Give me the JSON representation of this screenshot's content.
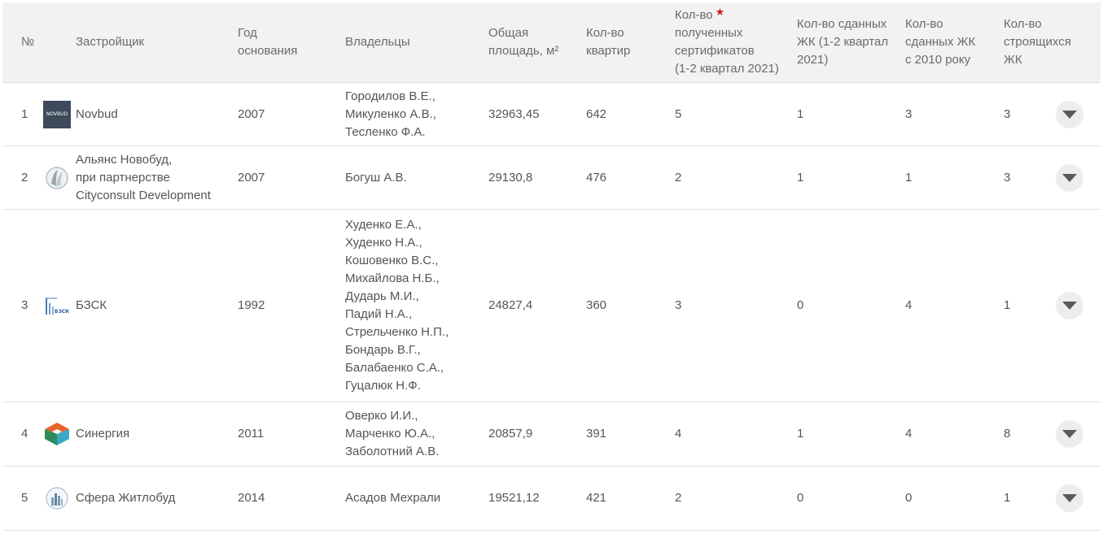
{
  "headers": {
    "num": "№",
    "developer": "Застройщик",
    "year": [
      "Год",
      "основания"
    ],
    "owners": "Владельцы",
    "area": [
      "Общая",
      "площадь, м²"
    ],
    "apartments": [
      "Кол-во",
      "квартир"
    ],
    "certificates": [
      "Кол-во",
      "полученных",
      "сертификатов",
      "(1-2 квартал 2021)"
    ],
    "certificates_star": "★",
    "delivered_2021": [
      "Кол-во сданных",
      "ЖК (1-2 квартал",
      "2021)"
    ],
    "delivered_2010": [
      "Кол-во",
      "сданных ЖК",
      "с 2010 року"
    ],
    "building": [
      "Кол-во",
      "строящихся",
      "ЖК"
    ]
  },
  "rows": [
    {
      "num": "1",
      "logo": "novbud-logo",
      "logo_text": "NOVBUD",
      "name": [
        "Novbud"
      ],
      "year": "2007",
      "owners": [
        "Городилов В.Е.,",
        "Микуленко А.В.,",
        "Тесленко Ф.А."
      ],
      "area": "32963,45",
      "apartments": "642",
      "certificates": "5",
      "delivered_2021": "1",
      "delivered_2010": "3",
      "building": "3"
    },
    {
      "num": "2",
      "logo": "alliance-novobud-logo",
      "name": [
        "Альянс Новобуд,",
        "при партнерстве",
        "Cityconsult Development"
      ],
      "year": "2007",
      "owners": [
        "Богуш А.В."
      ],
      "area": "29130,8",
      "apartments": "476",
      "certificates": "2",
      "delivered_2021": "1",
      "delivered_2010": "1",
      "building": "3"
    },
    {
      "num": "3",
      "logo": "bzsk-logo",
      "logo_text": "БЗСК",
      "name": [
        "БЗСК"
      ],
      "year": "1992",
      "owners": [
        "Худенко Е.А.,",
        "Худенко Н.А.,",
        "Кошовенко В.С.,",
        "Михайлова Н.Б.,",
        "Дударь М.И.,",
        "Падий Н.А.,",
        "Стрельченко Н.П.,",
        "Бондарь В.Г.,",
        "Балабаенко С.А.,",
        "Гуцалюк Н.Ф."
      ],
      "area": "24827,4",
      "apartments": "360",
      "certificates": "3",
      "delivered_2021": "0",
      "delivered_2010": "4",
      "building": "1"
    },
    {
      "num": "4",
      "logo": "synergy-logo",
      "name": [
        "Синергия"
      ],
      "year": "2011",
      "owners": [
        "Оверко И.И.,",
        "Марченко Ю.А.,",
        "Заболотний А.В."
      ],
      "area": "20857,9",
      "apartments": "391",
      "certificates": "4",
      "delivered_2021": "1",
      "delivered_2010": "4",
      "building": "8"
    },
    {
      "num": "5",
      "logo": "sfera-zhytlobud-logo",
      "name": [
        "Сфера Житлобуд"
      ],
      "year": "2014",
      "owners": [
        "Асадов Мехрали"
      ],
      "area": "19521,12",
      "apartments": "421",
      "certificates": "2",
      "delivered_2021": "0",
      "delivered_2010": "0",
      "building": "1"
    }
  ],
  "colors": {
    "header_bg": "#f2f2f2",
    "text": "#555555",
    "star": "#d02020",
    "expand_bg": "#ededed",
    "expand_icon": "#5a5a5a"
  }
}
